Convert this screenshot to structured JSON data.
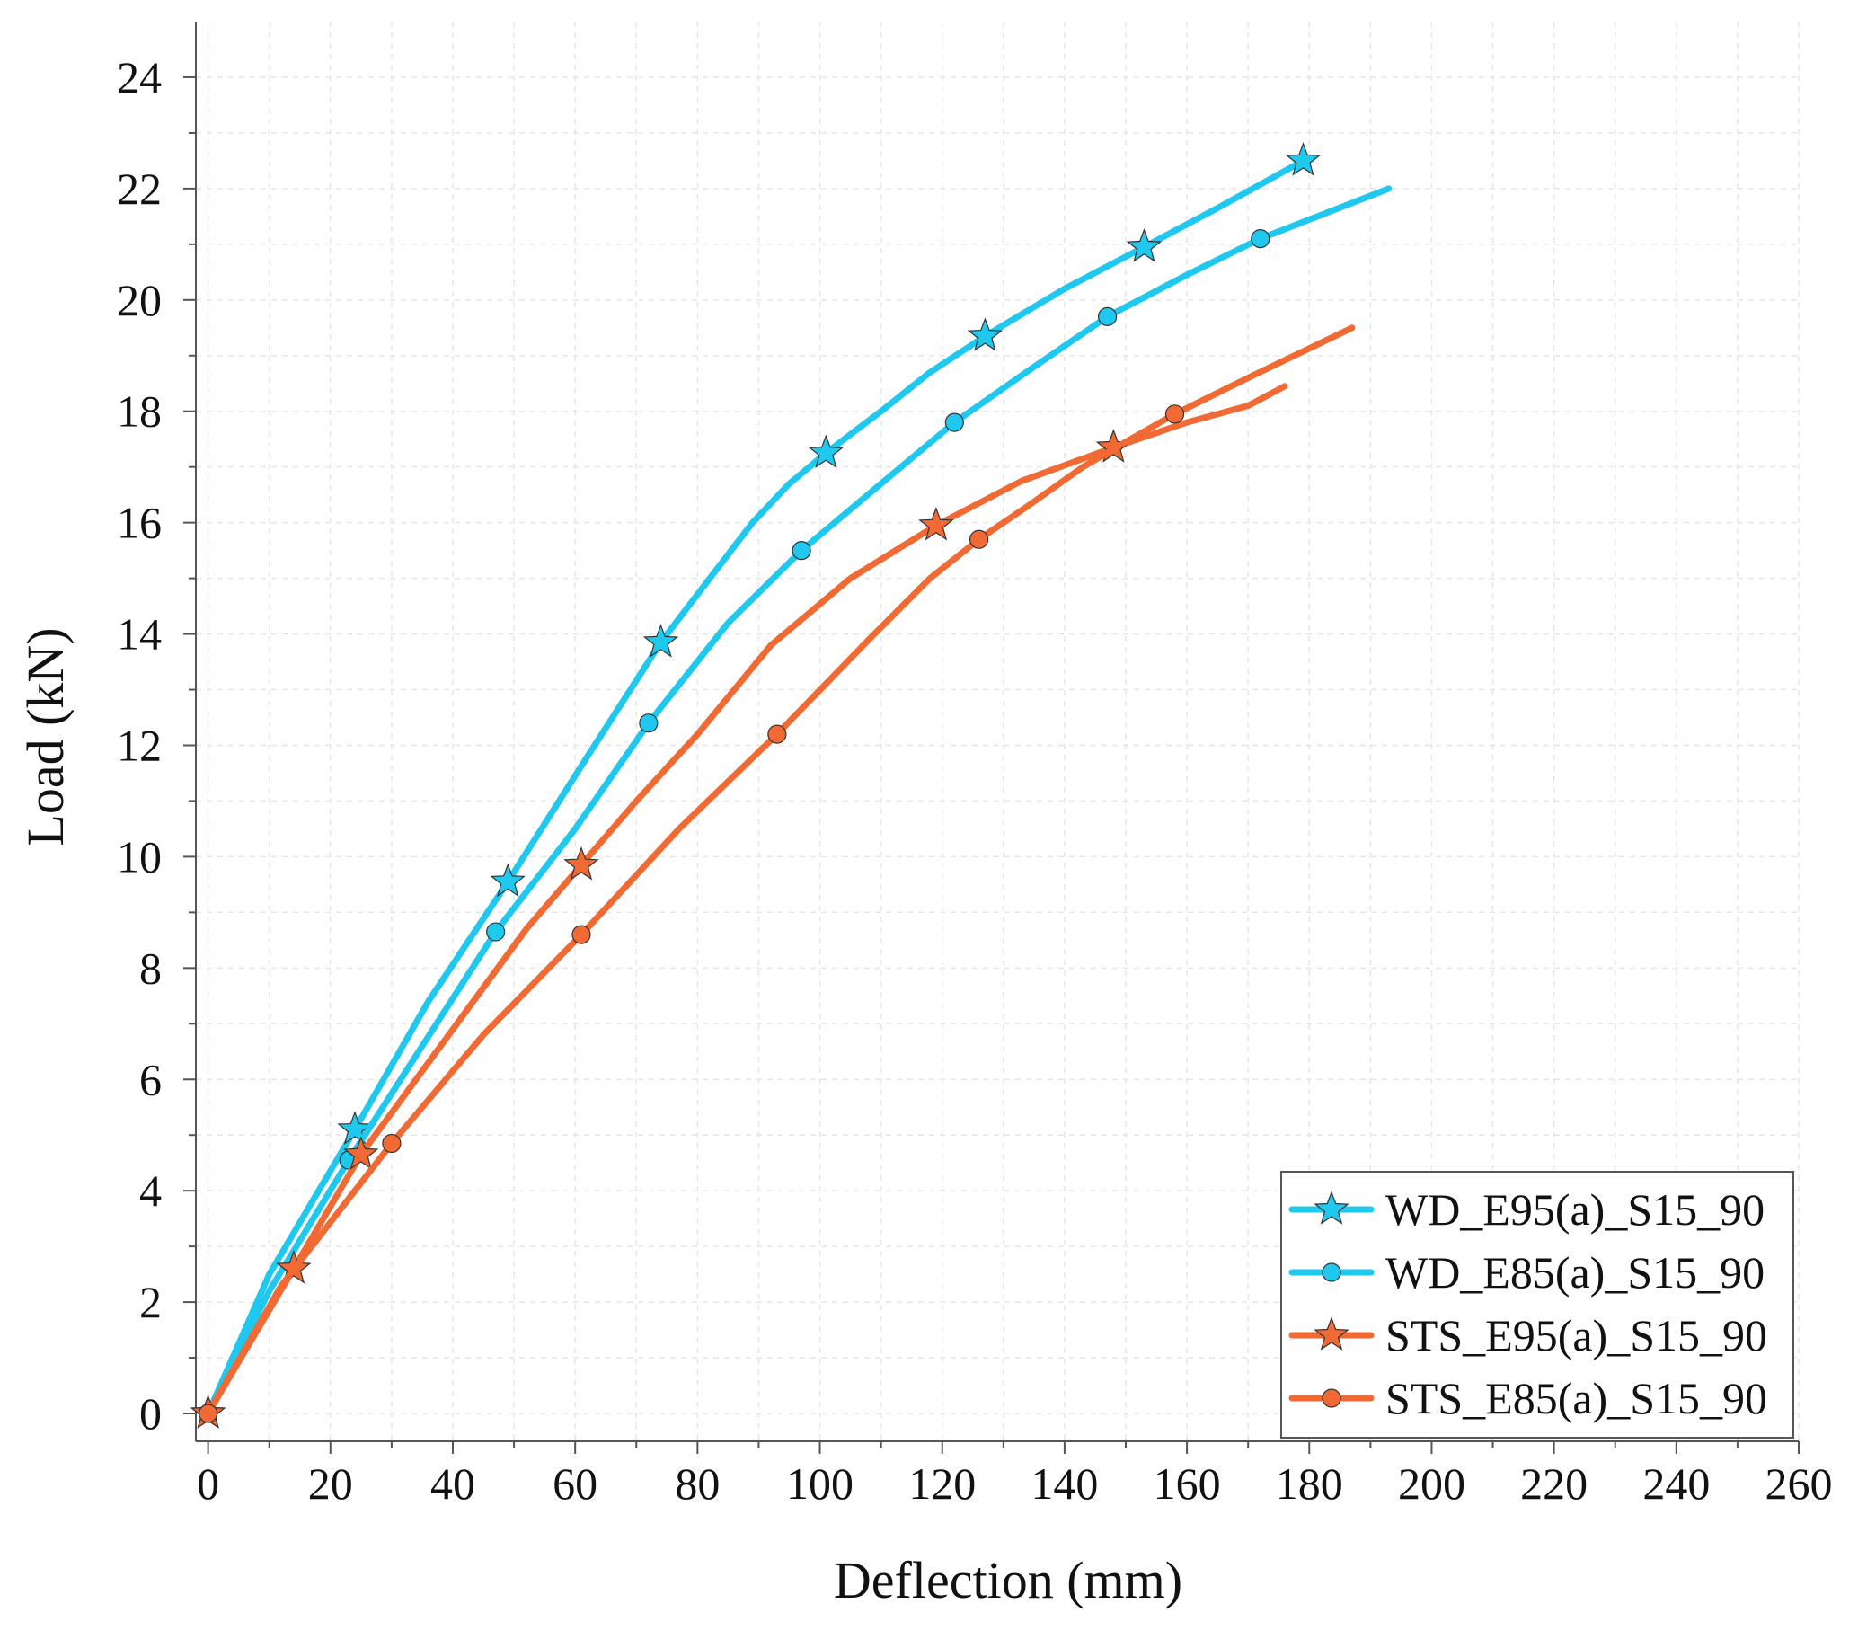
{
  "chart_data": {
    "type": "line",
    "title": "",
    "xlabel": "Deflection (mm)",
    "ylabel": "Load (kN)",
    "xlim": [
      -2,
      260
    ],
    "ylim": [
      -0.5,
      25
    ],
    "xticks": [
      0,
      20,
      40,
      60,
      80,
      100,
      120,
      140,
      160,
      180,
      200,
      220,
      240,
      260
    ],
    "yticks": [
      0,
      2,
      4,
      6,
      8,
      10,
      12,
      14,
      16,
      18,
      20,
      22,
      24
    ],
    "grid": true,
    "legend_position": "bottom-right",
    "series": [
      {
        "name": "WD_E95(a)_S15_90",
        "color": "#1ec8ee",
        "marker": "star",
        "x": [
          0,
          10,
          24,
          36,
          49,
          62,
          74,
          82,
          89,
          95,
          101,
          110,
          118,
          127,
          140,
          153,
          165,
          179
        ],
        "y": [
          0,
          2.5,
          5.1,
          7.4,
          9.55,
          11.8,
          13.85,
          15.0,
          16.0,
          16.7,
          17.25,
          18.0,
          18.7,
          19.35,
          20.2,
          20.95,
          21.65,
          22.5
        ],
        "marker_x": [
          24,
          49,
          74,
          101,
          127,
          153,
          179
        ],
        "marker_y": [
          5.1,
          9.55,
          13.85,
          17.25,
          19.35,
          20.95,
          22.5
        ]
      },
      {
        "name": "WD_E85(a)_S15_90",
        "color": "#1ec8ee",
        "marker": "circle",
        "x": [
          0,
          10,
          23,
          35,
          47,
          60,
          72,
          85,
          97,
          110,
          122,
          135,
          147,
          160,
          172,
          193
        ],
        "y": [
          0,
          2.2,
          4.55,
          6.6,
          8.65,
          10.5,
          12.4,
          14.2,
          15.5,
          16.7,
          17.8,
          18.8,
          19.7,
          20.45,
          21.1,
          22.0
        ],
        "marker_x": [
          23,
          47,
          72,
          97,
          122,
          147,
          172
        ],
        "marker_y": [
          4.55,
          8.65,
          12.4,
          15.5,
          17.8,
          19.7,
          21.1
        ]
      },
      {
        "name": "STS_E95(a)_S15_90",
        "color": "#f26a33",
        "marker": "star",
        "x": [
          0,
          14,
          25,
          38,
          52,
          61,
          70,
          80,
          92,
          105,
          119,
          133,
          148,
          160,
          170,
          176
        ],
        "y": [
          0,
          2.6,
          4.65,
          6.6,
          8.7,
          9.85,
          11.0,
          12.2,
          13.8,
          15.0,
          15.95,
          16.75,
          17.35,
          17.8,
          18.1,
          18.45
        ],
        "marker_x": [
          14,
          25,
          61,
          119,
          148
        ],
        "marker_y": [
          2.6,
          4.65,
          9.85,
          15.95,
          17.35
        ]
      },
      {
        "name": "STS_E85(a)_S15_90",
        "color": "#f26a33",
        "marker": "circle",
        "x": [
          0,
          12,
          30,
          45,
          61,
          77,
          93,
          108,
          118,
          126,
          134,
          143,
          150,
          158,
          170,
          187
        ],
        "y": [
          0,
          2.3,
          4.85,
          6.8,
          8.6,
          10.5,
          12.2,
          13.9,
          15.0,
          15.7,
          16.3,
          17.0,
          17.45,
          17.95,
          18.6,
          19.5
        ],
        "marker_x": [
          30,
          61,
          93,
          126,
          158
        ],
        "marker_y": [
          4.85,
          8.6,
          12.2,
          15.7,
          17.95
        ]
      }
    ]
  }
}
